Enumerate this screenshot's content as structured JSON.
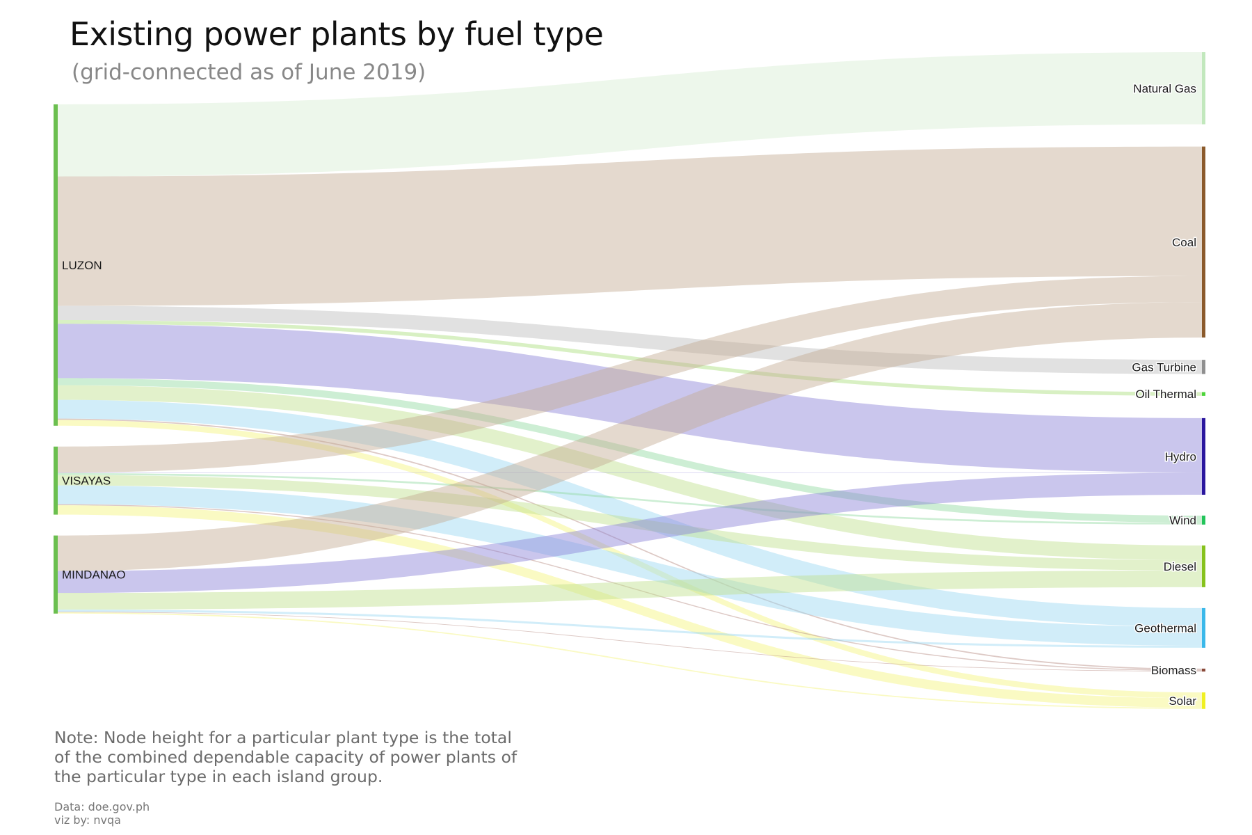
{
  "header": {
    "title": "Existing power plants by fuel type",
    "subtitle": "(grid-connected as of June 2019)"
  },
  "footer": {
    "note": "Note: Node height for a particular plant type is the total of the combined dependable capacity of power plants of the particular type in each island group.",
    "source": "Data: doe.gov.ph",
    "credit": "viz by: nvqa"
  },
  "chart_data": {
    "type": "sankey",
    "title": "Existing power plants by fuel type",
    "subtitle": "(grid-connected as of June 2019)",
    "sources": [
      {
        "name": "LUZON",
        "color": "#6bbf4f"
      },
      {
        "name": "VISAYAS",
        "color": "#6bbf4f"
      },
      {
        "name": "MINDANAO",
        "color": "#6bbf4f"
      }
    ],
    "targets": [
      {
        "name": "Natural Gas",
        "color": "#c2e8bd",
        "link_color": "#d8eed3"
      },
      {
        "name": "Coal",
        "color": "#8b5a2b",
        "link_color": "#c4ab92"
      },
      {
        "name": "Gas Turbine",
        "color": "#8f8f8f",
        "link_color": "#bdbdbd"
      },
      {
        "name": "Oil Thermal",
        "color": "#4cd43a",
        "link_color": "#a9de7a"
      },
      {
        "name": "Hydro",
        "color": "#2a169e",
        "link_color": "#8a80d8"
      },
      {
        "name": "Wind",
        "color": "#22c45a",
        "link_color": "#90d9a0"
      },
      {
        "name": "Diesel",
        "color": "#86c21c",
        "link_color": "#bfe08c"
      },
      {
        "name": "Geothermal",
        "color": "#3ab8ea",
        "link_color": "#9ad6f2"
      },
      {
        "name": "Biomass",
        "color": "#8a4a3a",
        "link_color": "#b4877e"
      },
      {
        "name": "Solar",
        "color": "#f0f022",
        "link_color": "#f5f57a"
      }
    ],
    "links": [
      {
        "source": "LUZON",
        "target": "Natural Gas",
        "value": 3453
      },
      {
        "source": "LUZON",
        "target": "Coal",
        "value": 6200
      },
      {
        "source": "LUZON",
        "target": "Gas Turbine",
        "value": 680
      },
      {
        "source": "LUZON",
        "target": "Oil Thermal",
        "value": 180
      },
      {
        "source": "LUZON",
        "target": "Hydro",
        "value": 2600
      },
      {
        "source": "LUZON",
        "target": "Wind",
        "value": 340
      },
      {
        "source": "LUZON",
        "target": "Diesel",
        "value": 700
      },
      {
        "source": "LUZON",
        "target": "Geothermal",
        "value": 900
      },
      {
        "source": "LUZON",
        "target": "Biomass",
        "value": 60
      },
      {
        "source": "LUZON",
        "target": "Solar",
        "value": 280
      },
      {
        "source": "VISAYAS",
        "target": "Coal",
        "value": 1250
      },
      {
        "source": "VISAYAS",
        "target": "Hydro",
        "value": 20
      },
      {
        "source": "VISAYAS",
        "target": "Wind",
        "value": 90
      },
      {
        "source": "VISAYAS",
        "target": "Diesel",
        "value": 500
      },
      {
        "source": "VISAYAS",
        "target": "Geothermal",
        "value": 900
      },
      {
        "source": "VISAYAS",
        "target": "Biomass",
        "value": 50
      },
      {
        "source": "VISAYAS",
        "target": "Solar",
        "value": 450
      },
      {
        "source": "MINDANAO",
        "target": "Coal",
        "value": 1700
      },
      {
        "source": "MINDANAO",
        "target": "Hydro",
        "value": 1050
      },
      {
        "source": "MINDANAO",
        "target": "Diesel",
        "value": 800
      },
      {
        "source": "MINDANAO",
        "target": "Geothermal",
        "value": 100
      },
      {
        "source": "MINDANAO",
        "target": "Biomass",
        "value": 30
      },
      {
        "source": "MINDANAO",
        "target": "Solar",
        "value": 60
      }
    ]
  }
}
